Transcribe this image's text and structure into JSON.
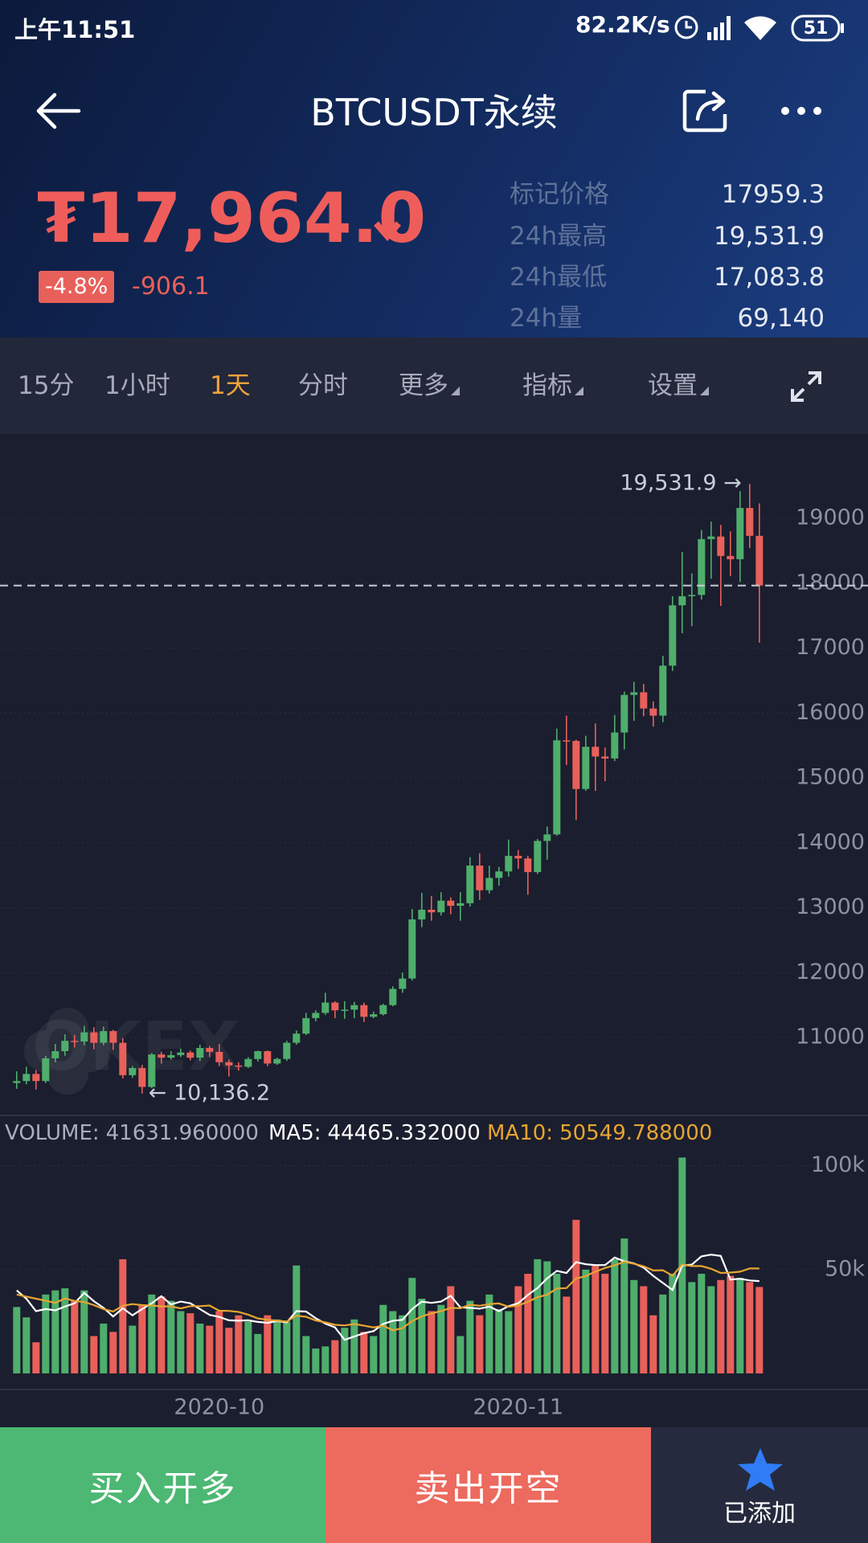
{
  "status_bar": {
    "time": "上午11:51",
    "speed": "82.2K/s",
    "battery": "51"
  },
  "header": {
    "title": "BTCUSDT永续"
  },
  "ticker": {
    "price": "₮17,964.0",
    "change_pct": "-4.8%",
    "change": "-906.1",
    "stats": [
      {
        "label": "标记价格",
        "value": "17959.3"
      },
      {
        "label": "24h最高",
        "value": "19,531.9"
      },
      {
        "label": "24h最低",
        "value": "17,083.8"
      },
      {
        "label": "24h量",
        "value": "69,140"
      }
    ]
  },
  "tabs": [
    "15分",
    "1小时",
    "1天",
    "分时",
    "更多",
    "指标",
    "设置"
  ],
  "buttons": {
    "buy": "买入开多",
    "sell": "卖出开空",
    "watch": "已添加"
  },
  "chart_data": [
    {
      "type": "candlestick",
      "watermark": "OKEX",
      "up_color": "#4fae6c",
      "down_color": "#e8605a",
      "open": [
        10300,
        10330,
        10440,
        10330,
        10680,
        10790,
        10950,
        10940,
        11080,
        10920,
        11100,
        10920,
        10420,
        10530,
        10240,
        10740,
        10690,
        10730,
        10770,
        10690,
        10840,
        10780,
        10620,
        10570,
        10550,
        10670,
        10790,
        10600,
        10670,
        10920,
        11060,
        11300,
        11380,
        11540,
        11420,
        11430,
        11500,
        11320,
        11360,
        11500,
        11750,
        11910,
        12820,
        12970,
        12930,
        13110,
        13030,
        13070,
        13650,
        13270,
        13460,
        13560,
        13800,
        13760,
        13550,
        14030,
        14130,
        15580,
        15570,
        14830,
        15480,
        15330,
        15300,
        15700,
        16280,
        16320,
        16070,
        15960,
        16730,
        17660,
        17800,
        17820,
        18680,
        18720,
        18420,
        18370,
        19160,
        18730
      ],
      "high": [
        10480,
        10550,
        10500,
        10720,
        10900,
        11050,
        11040,
        11180,
        11160,
        11170,
        11120,
        10990,
        10560,
        10580,
        10760,
        10780,
        10790,
        10830,
        10800,
        10890,
        10870,
        10900,
        10660,
        10620,
        10700,
        10800,
        10800,
        10690,
        10950,
        11110,
        11380,
        11420,
        11690,
        11560,
        11560,
        11550,
        11540,
        11400,
        11520,
        11790,
        12000,
        12980,
        13230,
        13180,
        13240,
        13160,
        13240,
        13780,
        13840,
        13650,
        13630,
        14050,
        13890,
        13800,
        14060,
        14250,
        15760,
        15960,
        15590,
        15650,
        15840,
        15470,
        15970,
        16330,
        16480,
        16450,
        16180,
        16880,
        17800,
        18480,
        18150,
        18820,
        18950,
        18900,
        18800,
        19420,
        19531.9,
        19230
      ],
      "low": [
        10210,
        10280,
        10200,
        10300,
        10620,
        10720,
        10850,
        10880,
        10820,
        10880,
        10810,
        10370,
        10380,
        10136.2,
        10220,
        10600,
        10660,
        10700,
        10650,
        10640,
        10700,
        10560,
        10400,
        10490,
        10530,
        10630,
        10560,
        10580,
        10640,
        10890,
        11040,
        11250,
        11350,
        11300,
        11290,
        11300,
        11240,
        11300,
        11340,
        11480,
        11690,
        11880,
        12700,
        12800,
        12880,
        12900,
        12800,
        13020,
        13120,
        13220,
        13340,
        13480,
        13600,
        13200,
        13520,
        13740,
        14110,
        15200,
        14350,
        14800,
        14800,
        14950,
        15260,
        15440,
        15880,
        15950,
        15790,
        15860,
        16650,
        17230,
        17340,
        17750,
        18070,
        17650,
        18110,
        18020,
        18540,
        17083.8
      ],
      "close": [
        10330,
        10440,
        10330,
        10680,
        10790,
        10950,
        10940,
        11080,
        10920,
        11100,
        10920,
        10420,
        10530,
        10240,
        10740,
        10690,
        10730,
        10770,
        10690,
        10840,
        10780,
        10620,
        10570,
        10550,
        10670,
        10790,
        10600,
        10670,
        10920,
        11060,
        11300,
        11380,
        11540,
        11420,
        11430,
        11500,
        11320,
        11360,
        11500,
        11750,
        11910,
        12820,
        12970,
        12930,
        13110,
        13030,
        13070,
        13650,
        13270,
        13460,
        13560,
        13800,
        13760,
        13550,
        14030,
        14130,
        15580,
        15570,
        14830,
        15480,
        15330,
        15300,
        15700,
        16280,
        16320,
        16070,
        15960,
        16730,
        17660,
        17800,
        17820,
        18680,
        18720,
        18420,
        18370,
        19160,
        18730,
        17964
      ],
      "high_label": "19,531.9 →",
      "low_label": "← 10,136.2",
      "ylim": [
        9800,
        20300
      ],
      "yticks": [
        11000,
        12000,
        13000,
        14000,
        15000,
        16000,
        17000,
        18000,
        19000
      ],
      "grid": true
    },
    {
      "type": "volume",
      "categories": [
        null,
        null,
        null,
        null,
        null,
        null,
        null,
        null,
        null,
        null,
        null,
        null,
        null,
        null,
        null,
        null,
        null,
        null,
        null,
        null,
        null,
        "2020-10",
        null,
        null,
        null,
        null,
        null,
        null,
        null,
        null,
        null,
        null,
        null,
        null,
        null,
        null,
        null,
        null,
        null,
        null,
        null,
        null,
        null,
        null,
        null,
        null,
        null,
        null,
        null,
        null,
        null,
        null,
        "2020-11",
        null,
        null,
        null,
        null,
        null,
        null,
        null,
        null,
        null,
        null,
        null,
        null,
        null,
        null,
        null,
        null,
        null,
        null,
        null,
        null,
        null,
        null,
        null,
        null,
        null
      ],
      "series": [
        {
          "name": "VOLUME:",
          "value_label": "41631.960000",
          "type": "bar",
          "color": "#a9adbd",
          "values": [
            32000,
            27000,
            15000,
            38000,
            40000,
            41000,
            35000,
            40000,
            18000,
            24000,
            20000,
            55000,
            23000,
            33000,
            38000,
            37000,
            35000,
            30000,
            29000,
            24000,
            23000,
            30000,
            22000,
            28000,
            25000,
            19000,
            28000,
            26000,
            25000,
            52000,
            18000,
            12000,
            13000,
            16000,
            22000,
            26000,
            20000,
            18000,
            33000,
            30000,
            28000,
            46000,
            36000,
            30000,
            33000,
            42000,
            18000,
            35000,
            28000,
            38000,
            31000,
            30000,
            42000,
            48000,
            55000,
            54000,
            48000,
            37000,
            74000,
            50000,
            52000,
            48000,
            55000,
            65000,
            45000,
            42000,
            28000,
            38000,
            48000,
            104000,
            44000,
            48000,
            42000,
            45000,
            47000,
            46000,
            44000,
            41631.96
          ]
        },
        {
          "name": "MA5:",
          "value_label": "44465.332000",
          "type": "line",
          "color": "#ffffff",
          "values": [
            40000,
            36000,
            30000,
            31000,
            30400,
            32200,
            33800,
            38800,
            34800,
            31600,
            27400,
            31400,
            28000,
            31000,
            33800,
            37200,
            33200,
            34600,
            33800,
            31000,
            28200,
            27200,
            25600,
            25400,
            25600,
            24800,
            24400,
            25200,
            24600,
            30000,
            29800,
            26600,
            24000,
            22200,
            16200,
            17800,
            19400,
            20400,
            23800,
            25400,
            25800,
            31000,
            34600,
            34000,
            34600,
            37400,
            31800,
            31600,
            31200,
            32200,
            30000,
            32400,
            33800,
            37800,
            41200,
            45800,
            49400,
            48400,
            53600,
            52600,
            52200,
            52200,
            55800,
            54000,
            53000,
            51000,
            47000,
            43600,
            40200,
            52000,
            52400,
            56400,
            57200,
            56600,
            45200,
            45600,
            44800,
            44465.332
          ]
        },
        {
          "name": "MA10:",
          "value_label": "50549.788000",
          "type": "line",
          "color": "#e7a531",
          "values": [
            38000,
            37000,
            36000,
            35000,
            34000,
            36100,
            34900,
            34400,
            32900,
            31000,
            29800,
            32600,
            33400,
            32900,
            32700,
            32300,
            32300,
            31300,
            32400,
            32400,
            32700,
            30200,
            30100,
            29600,
            28300,
            26500,
            25800,
            25400,
            25000,
            27800,
            27300,
            25500,
            24600,
            23400,
            23100,
            23800,
            23000,
            22200,
            23000,
            20800,
            21800,
            25200,
            27500,
            28900,
            30000,
            31600,
            31400,
            33100,
            32600,
            33400,
            33700,
            32100,
            32700,
            34500,
            36700,
            37900,
            40900,
            41100,
            45700,
            46900,
            49000,
            50800,
            52100,
            53800,
            52800,
            51600,
            49600,
            49700,
            47100,
            52500,
            51700,
            51700,
            50400,
            48400,
            48600,
            49000,
            50600,
            50549.788
          ]
        }
      ],
      "ylim": [
        0,
        120000
      ],
      "yticks": [
        {
          "value": 50000,
          "label": "50k"
        },
        {
          "value": 100000,
          "label": "100k"
        }
      ]
    }
  ]
}
